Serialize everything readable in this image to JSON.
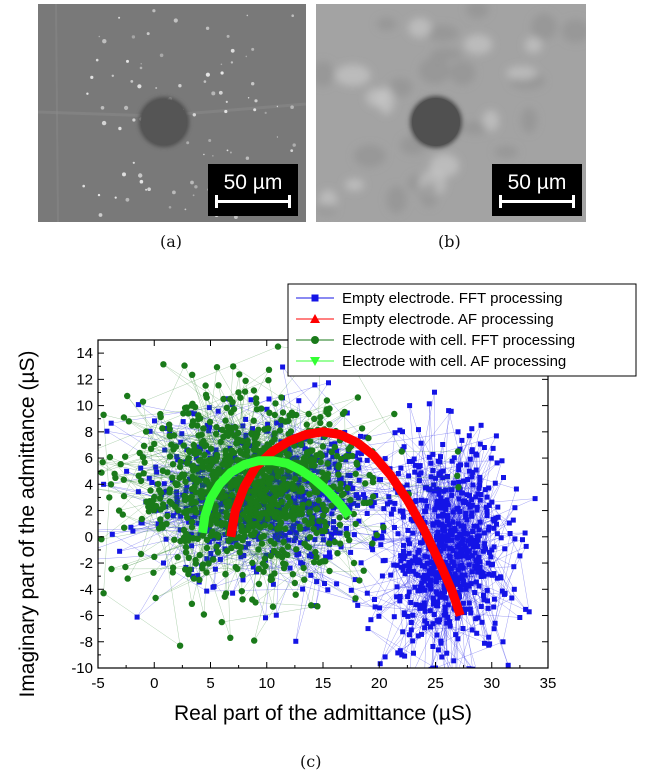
{
  "panels": [
    {
      "caption": "(a)",
      "scalebar_label": "50 µm"
    },
    {
      "caption": "(b)",
      "scalebar_label": "50 µm"
    }
  ],
  "chart_caption": "(c)",
  "colors": {
    "empty_fft": "#1414e6",
    "empty_af": "#ff0000",
    "cell_fft": "#1a7a1a",
    "cell_af": "#33ff33"
  },
  "chart_data": {
    "type": "scatter",
    "title": "",
    "xlabel": "Real part of the admittance (µS)",
    "ylabel": "Imaginary part of the admittance (µS)",
    "xlim": [
      -5,
      35
    ],
    "ylim": [
      -10,
      15
    ],
    "xticks": [
      -5,
      0,
      5,
      10,
      15,
      20,
      25,
      30,
      35
    ],
    "yticks": [
      -10,
      -8,
      -6,
      -4,
      -2,
      0,
      2,
      4,
      6,
      8,
      10,
      12,
      14
    ],
    "legend_position": "top-right",
    "series": [
      {
        "name": "Empty electrode. FFT processing",
        "marker": "square",
        "style": "line+markers",
        "clusters": [
          {
            "x_range": [
              -2,
              22
            ],
            "y_range": [
              -4,
              10
            ],
            "note_count": 1
          },
          {
            "x_range": [
              20,
              32
            ],
            "y_range": [
              -10,
              8
            ],
            "note_count": 1
          }
        ],
        "outliers": [
          [
            -4.5,
            4
          ],
          [
            27,
            8
          ],
          [
            28,
            5
          ],
          [
            30,
            -1
          ],
          [
            32,
            -4
          ],
          [
            31,
            -8
          ],
          [
            25,
            -10
          ],
          [
            19,
            -7
          ],
          [
            22,
            -9
          ]
        ]
      },
      {
        "name": "Empty electrode. AF processing",
        "marker": "triangle-up",
        "style": "line+markers",
        "x": [
          6.8,
          7.2,
          8.0,
          9.0,
          10.5,
          12.0,
          13.5,
          15.0,
          16.5,
          18.0,
          19.5,
          21.0,
          22.5,
          24.0,
          25.5,
          26.5,
          27.2
        ],
        "y": [
          0.0,
          2.0,
          3.8,
          5.3,
          6.5,
          7.3,
          7.8,
          8.0,
          7.8,
          7.2,
          6.2,
          4.7,
          2.8,
          0.5,
          -2.2,
          -4.2,
          -6.0
        ]
      },
      {
        "name": "Electrode with cell. FFT processing",
        "marker": "circle",
        "style": "line+markers",
        "clusters": [
          {
            "x_range": [
              -3,
              20
            ],
            "y_range": [
              -4,
              11
            ],
            "note_count": 1
          }
        ],
        "outliers": [
          [
            -4.5,
            9.3
          ],
          [
            -4,
            3
          ],
          [
            -4.5,
            -4.3
          ],
          [
            2.3,
            -8.3
          ],
          [
            -1,
            10.3
          ],
          [
            11,
            14.5
          ],
          [
            17,
            14
          ],
          [
            22,
            6.5
          ],
          [
            27,
            6.5
          ],
          [
            9,
            -5
          ],
          [
            14.5,
            -5.3
          ],
          [
            6,
            -6.5
          ]
        ]
      },
      {
        "name": "Electrode with cell. AF processing",
        "marker": "triangle-down",
        "style": "line+markers",
        "x": [
          4.3,
          4.5,
          5.0,
          5.8,
          6.8,
          8.0,
          9.3,
          10.5,
          11.8,
          13.0,
          14.2,
          15.4,
          16.5,
          17.3
        ],
        "y": [
          0.3,
          1.6,
          2.9,
          4.0,
          4.9,
          5.5,
          5.8,
          5.8,
          5.6,
          5.1,
          4.4,
          3.5,
          2.5,
          1.6
        ]
      }
    ]
  }
}
